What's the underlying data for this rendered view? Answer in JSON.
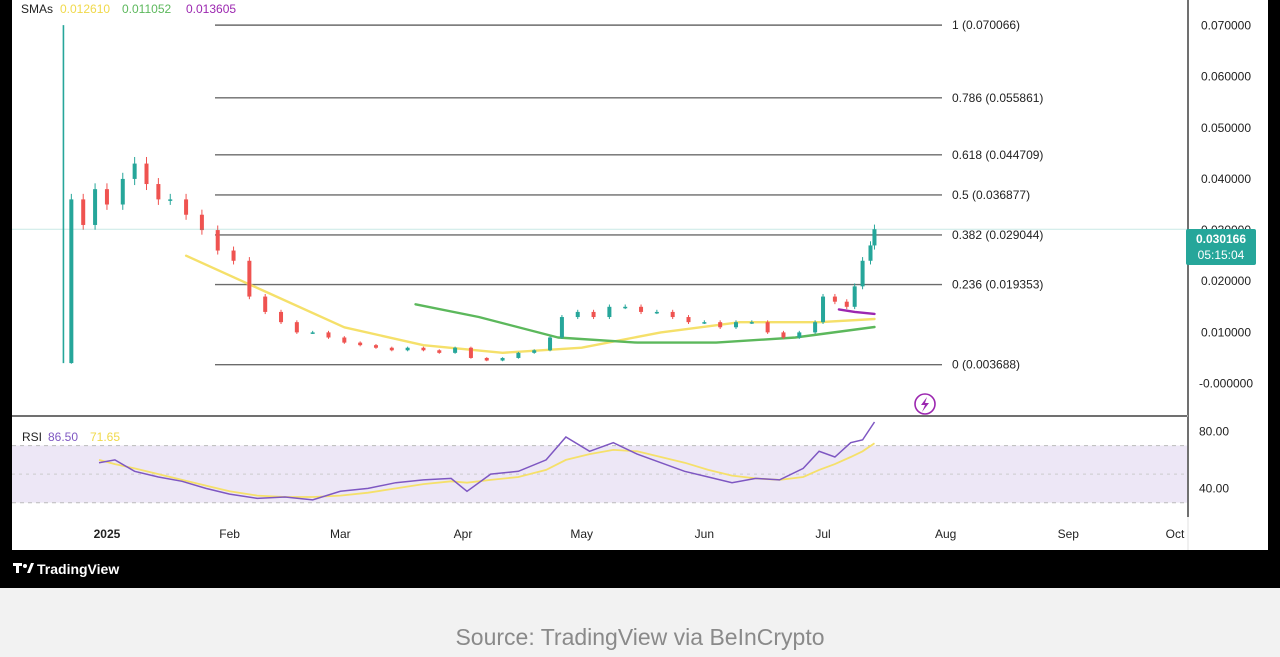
{
  "colors": {
    "background": "#ffffff",
    "frame": "#000000",
    "candle_up": "#26a69a",
    "candle_down": "#ef5350",
    "sma_fast": "#f5e06a",
    "sma_mid": "#5cb85c",
    "sma_slow": "#9c27b0",
    "rsi_line": "#7e57c2",
    "rsi_ma": "#f5e06a",
    "rsi_band": "#ede7f6",
    "fib_line": "#6b6b6b",
    "price_badge": "#26a69a",
    "caption": "#8a8a8a"
  },
  "indicators": {
    "sma_label": "SMAs",
    "sma_values": [
      "0.012610",
      "0.011052",
      "0.013605"
    ],
    "rsi_label": "RSI",
    "rsi_values": [
      "86.50",
      "71.65"
    ]
  },
  "price_badge": {
    "price": "0.030166",
    "countdown": "05:15:04"
  },
  "branding": {
    "logo_text": "TradingView"
  },
  "caption": "Source: TradingView via BeInCrypto",
  "chart_data": {
    "type": "line",
    "x_axis": {
      "ticks": [
        "2025",
        "Feb",
        "Mar",
        "Apr",
        "May",
        "Jun",
        "Jul",
        "Aug",
        "Sep",
        "Oct"
      ],
      "range": [
        "2024-12-08",
        "2025-10-01"
      ]
    },
    "y_axis": {
      "scale": "linear",
      "ticks": [
        "0.070000",
        "0.060000",
        "0.050000",
        "0.040000",
        "0.030000",
        "0.020000",
        "0.010000",
        "-0.000000"
      ],
      "range": [
        -0.004,
        0.074
      ],
      "position": "right"
    },
    "fib_levels": [
      {
        "label": "1 (0.070066)",
        "value": 0.070066
      },
      {
        "label": "0.786 (0.055861)",
        "value": 0.055861
      },
      {
        "label": "0.618 (0.044709)",
        "value": 0.044709
      },
      {
        "label": "0.5 (0.036877)",
        "value": 0.036877
      },
      {
        "label": "0.382 (0.029044)",
        "value": 0.029044
      },
      {
        "label": "0.236 (0.019353)",
        "value": 0.019353
      },
      {
        "label": "0 (0.003688)",
        "value": 0.003688
      }
    ],
    "price_series": {
      "x": [
        "2024-12-21",
        "2024-12-23",
        "2024-12-26",
        "2024-12-29",
        "2025-01-01",
        "2025-01-05",
        "2025-01-08",
        "2025-01-11",
        "2025-01-14",
        "2025-01-17",
        "2025-01-21",
        "2025-01-25",
        "2025-01-29",
        "2025-02-02",
        "2025-02-06",
        "2025-02-10",
        "2025-02-14",
        "2025-02-18",
        "2025-02-22",
        "2025-02-26",
        "2025-03-02",
        "2025-03-06",
        "2025-03-10",
        "2025-03-14",
        "2025-03-18",
        "2025-03-22",
        "2025-03-26",
        "2025-03-30",
        "2025-04-03",
        "2025-04-07",
        "2025-04-11",
        "2025-04-15",
        "2025-04-19",
        "2025-04-23",
        "2025-04-26",
        "2025-04-30",
        "2025-05-04",
        "2025-05-08",
        "2025-05-12",
        "2025-05-16",
        "2025-05-20",
        "2025-05-24",
        "2025-05-28",
        "2025-06-01",
        "2025-06-05",
        "2025-06-09",
        "2025-06-13",
        "2025-06-17",
        "2025-06-21",
        "2025-06-25",
        "2025-06-29",
        "2025-07-01",
        "2025-07-04",
        "2025-07-07",
        "2025-07-09",
        "2025-07-11",
        "2025-07-13",
        "2025-07-14"
      ],
      "y": [
        0.004,
        0.036,
        0.031,
        0.038,
        0.035,
        0.04,
        0.043,
        0.039,
        0.036,
        0.036,
        0.033,
        0.03,
        0.026,
        0.024,
        0.017,
        0.014,
        0.012,
        0.01,
        0.01,
        0.009,
        0.008,
        0.0075,
        0.007,
        0.0065,
        0.007,
        0.0065,
        0.006,
        0.007,
        0.005,
        0.0045,
        0.005,
        0.006,
        0.0065,
        0.009,
        0.013,
        0.014,
        0.013,
        0.015,
        0.015,
        0.014,
        0.014,
        0.013,
        0.012,
        0.012,
        0.011,
        0.012,
        0.012,
        0.01,
        0.009,
        0.01,
        0.012,
        0.017,
        0.016,
        0.015,
        0.019,
        0.024,
        0.027,
        0.030166
      ]
    },
    "sma_series": [
      {
        "x": [
          "2025-01-21",
          "2025-02-10",
          "2025-03-02",
          "2025-03-22",
          "2025-04-11",
          "2025-05-01",
          "2025-05-21",
          "2025-06-10",
          "2025-06-30",
          "2025-07-14"
        ],
        "y": [
          0.025,
          0.018,
          0.011,
          0.0075,
          0.006,
          0.007,
          0.01,
          0.012,
          0.012,
          0.01261
        ]
      },
      {
        "x": [
          "2025-03-20",
          "2025-04-05",
          "2025-04-25",
          "2025-05-15",
          "2025-06-04",
          "2025-06-24",
          "2025-07-14"
        ],
        "y": [
          0.0155,
          0.013,
          0.009,
          0.008,
          0.008,
          0.009,
          0.011052
        ]
      },
      {
        "x": [
          "2025-07-05",
          "2025-07-09",
          "2025-07-14"
        ],
        "y": [
          0.0145,
          0.014,
          0.013605
        ]
      }
    ],
    "rsi": {
      "y_ticks": [
        "80.00",
        "40.00"
      ],
      "range": [
        20,
        90
      ],
      "band": [
        30,
        70
      ],
      "x": [
        "2024-12-30",
        "2025-01-03",
        "2025-01-08",
        "2025-01-14",
        "2025-01-20",
        "2025-01-26",
        "2025-02-01",
        "2025-02-08",
        "2025-02-15",
        "2025-02-22",
        "2025-03-01",
        "2025-03-08",
        "2025-03-15",
        "2025-03-22",
        "2025-03-29",
        "2025-04-02",
        "2025-04-08",
        "2025-04-15",
        "2025-04-22",
        "2025-04-27",
        "2025-05-03",
        "2025-05-09",
        "2025-05-15",
        "2025-05-21",
        "2025-05-27",
        "2025-06-02",
        "2025-06-08",
        "2025-06-14",
        "2025-06-20",
        "2025-06-26",
        "2025-06-30",
        "2025-07-04",
        "2025-07-08",
        "2025-07-11",
        "2025-07-14"
      ],
      "values": [
        58,
        60,
        52,
        48,
        45,
        40,
        36,
        33,
        34,
        32,
        38,
        40,
        44,
        46,
        47,
        38,
        50,
        52,
        60,
        76,
        66,
        72,
        64,
        58,
        52,
        48,
        44,
        47,
        46,
        54,
        66,
        62,
        72,
        74,
        86.5
      ],
      "ma": [
        60,
        57,
        54,
        50,
        46,
        42,
        38,
        35,
        34,
        34,
        35,
        37,
        40,
        43,
        45,
        44,
        46,
        48,
        53,
        60,
        64,
        67,
        66,
        62,
        58,
        53,
        49,
        47,
        46,
        48,
        53,
        57,
        62,
        66,
        71.65
      ]
    }
  }
}
